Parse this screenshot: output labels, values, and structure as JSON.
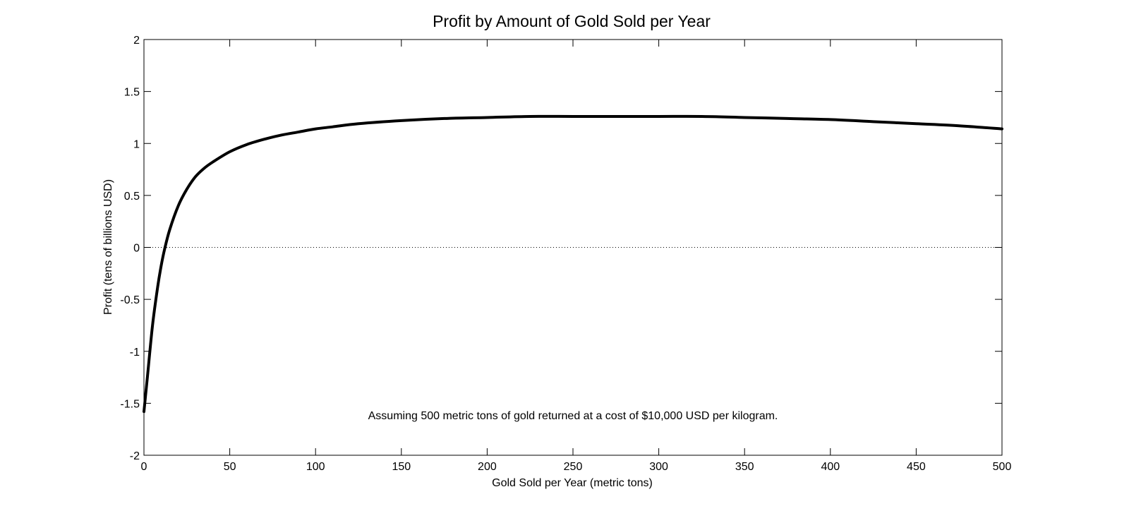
{
  "chart_data": {
    "type": "line",
    "title": "Profit by Amount of Gold Sold per Year",
    "xlabel": "Gold Sold per Year (metric tons)",
    "ylabel": "Profit (tens of billions USD)",
    "xlim": [
      0,
      500
    ],
    "ylim": [
      -2,
      2
    ],
    "xticks": [
      0,
      50,
      100,
      150,
      200,
      250,
      300,
      350,
      400,
      450,
      500
    ],
    "yticks": [
      -2,
      -1.5,
      -1,
      -0.5,
      0,
      0.5,
      1,
      1.5,
      2
    ],
    "xtick_labels": [
      "0",
      "50",
      "100",
      "150",
      "200",
      "250",
      "300",
      "350",
      "400",
      "450",
      "500"
    ],
    "ytick_labels": [
      "-2",
      "-1.5",
      "-1",
      "-0.5",
      "0",
      "0.5",
      "1",
      "1.5",
      "2"
    ],
    "grid": false,
    "annotation": "Assuming 500 metric tons of gold returned at a cost of $10,000 USD per kilogram.",
    "reference_line": {
      "y": 0,
      "style": "dotted"
    },
    "series": [
      {
        "color": "#000000",
        "x": [
          0,
          2,
          5,
          8,
          10,
          12,
          15,
          20,
          25,
          30,
          35,
          40,
          50,
          60,
          70,
          80,
          90,
          100,
          110,
          125,
          150,
          175,
          200,
          225,
          250,
          275,
          300,
          325,
          350,
          375,
          400,
          425,
          450,
          475,
          500
        ],
        "y": [
          -1.58,
          -1.25,
          -0.75,
          -0.38,
          -0.18,
          -0.02,
          0.17,
          0.4,
          0.56,
          0.68,
          0.76,
          0.82,
          0.92,
          0.99,
          1.04,
          1.08,
          1.11,
          1.14,
          1.16,
          1.19,
          1.22,
          1.24,
          1.25,
          1.26,
          1.26,
          1.26,
          1.26,
          1.26,
          1.25,
          1.24,
          1.23,
          1.21,
          1.19,
          1.17,
          1.14
        ]
      }
    ]
  }
}
